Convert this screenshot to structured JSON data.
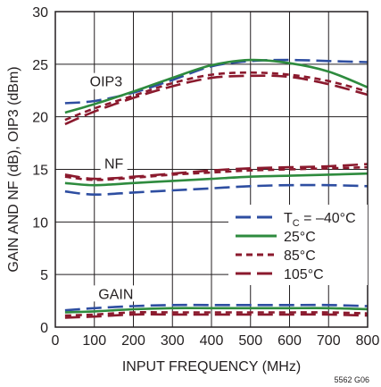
{
  "chart_data": {
    "type": "line",
    "xlabel": "INPUT FREQUENCY (MHz)",
    "ylabel": "GAIN AND NF (dB), OIP3 (dBm)",
    "xlim": [
      0,
      800
    ],
    "ylim": [
      0,
      30
    ],
    "x_ticks": [
      "0",
      "100",
      "200",
      "300",
      "400",
      "500",
      "600",
      "700",
      "800"
    ],
    "y_ticks": [
      "0",
      "5",
      "10",
      "15",
      "20",
      "25",
      "30"
    ],
    "grid": true,
    "figure_id": "5562 G06",
    "annotations": [
      {
        "text": "OIP3",
        "x": 130,
        "y": 23.4
      },
      {
        "text": "NF",
        "x": 150,
        "y": 15.6
      },
      {
        "text": "GAIN",
        "x": 155,
        "y": 3.2
      }
    ],
    "legend": {
      "placement": "center-right",
      "entries": [
        {
          "prefix": "T",
          "sub": "C",
          "suffix": " = –40°C",
          "color": "#2e4ea1",
          "dash": "long"
        },
        {
          "text": "25°C",
          "color": "#2e8b3e",
          "dash": "solid"
        },
        {
          "text": "85°C",
          "color": "#8b1a2e",
          "dash": "short"
        },
        {
          "text": "105°C",
          "color": "#8b1a2e",
          "dash": "long"
        }
      ]
    },
    "x": [
      25,
      100,
      200,
      300,
      400,
      500,
      600,
      700,
      800
    ],
    "series": [
      {
        "group": "OIP3",
        "entry": 0,
        "values": [
          21.3,
          21.5,
          22.3,
          23.5,
          24.8,
          25.3,
          25.4,
          25.3,
          25.2
        ]
      },
      {
        "group": "OIP3",
        "entry": 1,
        "values": [
          20.4,
          21.2,
          22.4,
          23.7,
          24.9,
          25.4,
          25.1,
          24.3,
          22.8
        ]
      },
      {
        "group": "OIP3",
        "entry": 2,
        "values": [
          19.7,
          20.8,
          22.0,
          23.2,
          24.0,
          24.2,
          24.0,
          23.4,
          22.4
        ]
      },
      {
        "group": "OIP3",
        "entry": 3,
        "values": [
          19.3,
          20.5,
          21.8,
          22.9,
          23.7,
          23.9,
          23.8,
          23.1,
          22.1
        ]
      },
      {
        "group": "NF",
        "entry": 0,
        "values": [
          12.9,
          12.6,
          12.8,
          13.0,
          13.2,
          13.4,
          13.5,
          13.5,
          13.4
        ]
      },
      {
        "group": "NF",
        "entry": 1,
        "values": [
          13.7,
          13.5,
          13.7,
          13.9,
          14.1,
          14.3,
          14.4,
          14.5,
          14.6
        ]
      },
      {
        "group": "NF",
        "entry": 2,
        "values": [
          14.3,
          14.0,
          14.2,
          14.5,
          14.7,
          14.9,
          15.0,
          15.1,
          15.2
        ]
      },
      {
        "group": "NF",
        "entry": 3,
        "values": [
          14.5,
          14.1,
          14.3,
          14.6,
          14.9,
          15.1,
          15.2,
          15.3,
          15.5
        ]
      },
      {
        "group": "GAIN",
        "entry": 0,
        "values": [
          1.6,
          1.8,
          2.0,
          2.1,
          2.1,
          2.1,
          2.1,
          2.1,
          2.0
        ]
      },
      {
        "group": "GAIN",
        "entry": 1,
        "values": [
          1.4,
          1.5,
          1.7,
          1.8,
          1.8,
          1.8,
          1.8,
          1.8,
          1.7
        ]
      },
      {
        "group": "GAIN",
        "entry": 2,
        "values": [
          1.1,
          1.2,
          1.4,
          1.4,
          1.4,
          1.4,
          1.4,
          1.4,
          1.3
        ]
      },
      {
        "group": "GAIN",
        "entry": 3,
        "values": [
          0.9,
          1.0,
          1.2,
          1.2,
          1.2,
          1.2,
          1.2,
          1.2,
          1.1
        ]
      }
    ]
  }
}
